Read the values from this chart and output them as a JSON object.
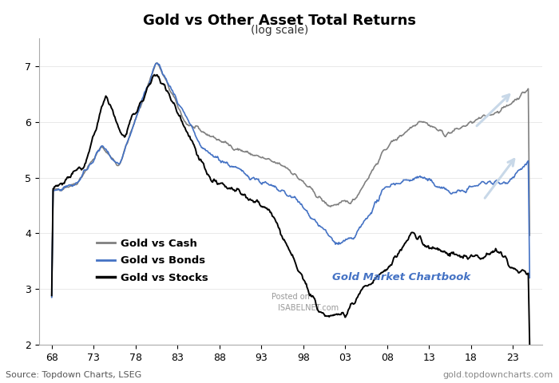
{
  "title": "Gold vs Other Asset Total Returns",
  "subtitle": "(log scale)",
  "source_text": "Source: Topdown Charts, LSEG",
  "watermark_text": "Gold Market Chartbook",
  "watermark_url": "gold.topdowncharts.com",
  "posted_on_text": "Posted on",
  "isabelnet_text": "ISABELNET.com",
  "x_ticks": [
    1968,
    1973,
    1978,
    1983,
    1988,
    1993,
    1998,
    2003,
    2008,
    2013,
    2018,
    2023
  ],
  "x_tick_labels": [
    "68",
    "73",
    "78",
    "83",
    "88",
    "93",
    "98",
    "03",
    "08",
    "13",
    "18",
    "23"
  ],
  "xlim": [
    1966.5,
    2026.5
  ],
  "ylim": [
    2.0,
    7.5
  ],
  "y_ticks": [
    2,
    3,
    4,
    5,
    6,
    7
  ],
  "legend_labels": [
    "Gold vs Cash",
    "Gold vs Bonds",
    "Gold vs Stocks"
  ],
  "legend_colors": [
    "#808080",
    "#4472C4",
    "#000000"
  ],
  "line_colors": {
    "cash": "#808080",
    "bonds": "#4472C4",
    "stocks": "#000000"
  },
  "arrow_color": "#c8d8e8",
  "background_color": "#ffffff"
}
